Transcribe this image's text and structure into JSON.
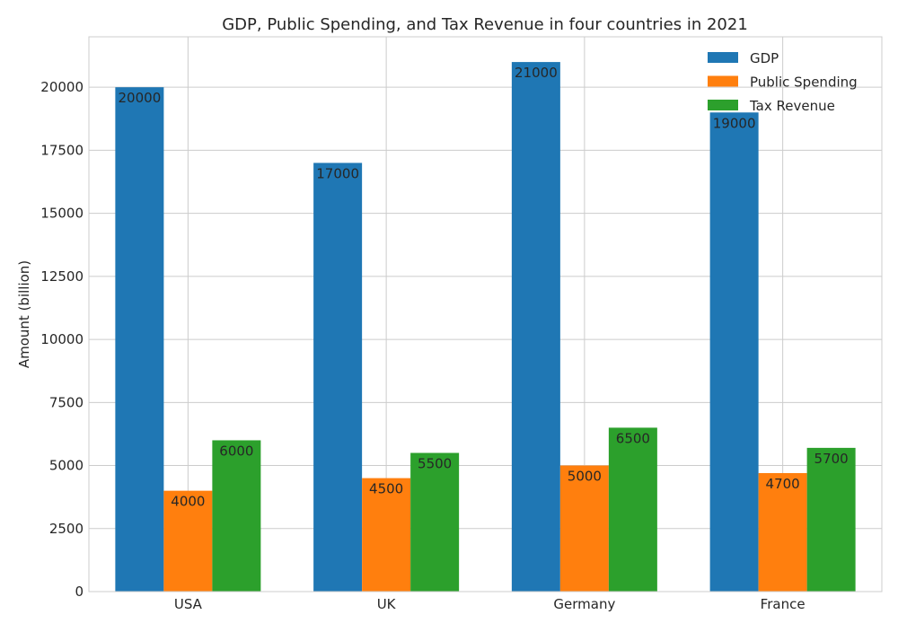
{
  "chart_data": {
    "type": "bar",
    "title": "GDP, Public Spending, and Tax Revenue in four countries in 2021",
    "xlabel": "",
    "ylabel": "Amount (billion)",
    "categories": [
      "USA",
      "UK",
      "Germany",
      "France"
    ],
    "series": [
      {
        "name": "GDP",
        "color": "#1f77b4",
        "values": [
          20000,
          17000,
          21000,
          19000
        ]
      },
      {
        "name": "Public Spending",
        "color": "#ff7f0e",
        "values": [
          4000,
          4500,
          5000,
          4700
        ]
      },
      {
        "name": "Tax Revenue",
        "color": "#2ca02c",
        "values": [
          6000,
          5500,
          6500,
          5700
        ]
      }
    ],
    "ylim": [
      0,
      22000
    ],
    "yticks": [
      0,
      2500,
      5000,
      7500,
      10000,
      12500,
      15000,
      17500,
      20000
    ],
    "ytick_labels": [
      "0",
      "2500",
      "5000",
      "7500",
      "10000",
      "12500",
      "15000",
      "17500",
      "20000"
    ],
    "data_labels": [
      [
        "20000",
        "17000",
        "21000",
        "19000"
      ],
      [
        "4000",
        "4500",
        "5000",
        "4700"
      ],
      [
        "6000",
        "5500",
        "6500",
        "5700"
      ]
    ],
    "grid": true,
    "legend_position": "top-right"
  }
}
